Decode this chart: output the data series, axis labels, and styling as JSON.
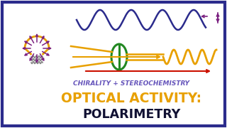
{
  "background_color": "#ffffff",
  "border_color": "#2b2b8c",
  "title1": "CHIRALITY + STEREOCHEMISTRY",
  "title1_color": "#6655bb",
  "title1_fontsize": 6.5,
  "title2": "OPTICAL ACTIVITY:",
  "title2_color": "#e8a000",
  "title2_fontsize": 13.5,
  "title3": "POLARIMETRY",
  "title3_color": "#111133",
  "title3_fontsize": 12.5,
  "wave_color_blue": "#2b2b8c",
  "wave_color_orange": "#e8a000",
  "wave_color_red": "#cc1100",
  "arrow_color_purple": "#7b2080",
  "bulb_color": "#e8a000",
  "ellipse_color": "#228822",
  "polarizer_color": "#e8a000"
}
